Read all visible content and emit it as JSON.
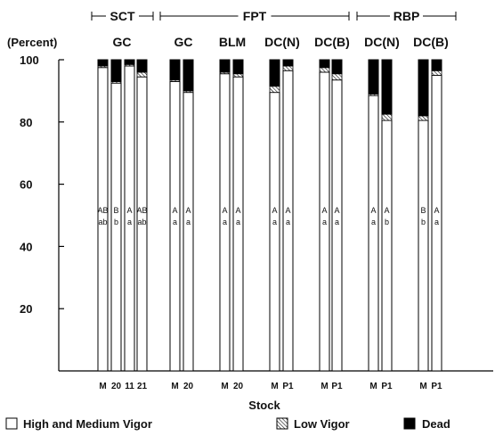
{
  "chart_data": {
    "type": "bar",
    "stacked": true,
    "ylabel": "(Percent)",
    "xlabel": "Stock",
    "ylim": [
      0,
      100
    ],
    "yticks": [
      20,
      40,
      60,
      80,
      100
    ],
    "legend_position": "bottom",
    "legend": [
      {
        "name": "High and Medium Vigor",
        "pattern": "white"
      },
      {
        "name": "Low Vigor",
        "pattern": "hatched"
      },
      {
        "name": "Dead",
        "pattern": "solid-black"
      }
    ],
    "site_groups": [
      {
        "label": "SCT"
      },
      {
        "label": "FPT"
      },
      {
        "label": "RBP"
      }
    ],
    "cultivar_groups": [
      {
        "label": "GC",
        "site": 0,
        "bars": [
          {
            "stock": "M",
            "high_medium": 97.5,
            "low": 0.5,
            "dead": 2.0,
            "letters": [
              "AB",
              "ab"
            ]
          },
          {
            "stock": "20",
            "high_medium": 92.5,
            "low": 0.5,
            "dead": 7.0,
            "letters": [
              "B",
              "b"
            ]
          },
          {
            "stock": "11",
            "high_medium": 98.0,
            "low": 0.5,
            "dead": 1.5,
            "letters": [
              "A",
              "a"
            ]
          },
          {
            "stock": "21",
            "high_medium": 94.5,
            "low": 1.5,
            "dead": 4.0,
            "letters": [
              "AB",
              "ab"
            ]
          }
        ]
      },
      {
        "label": "GC",
        "site": 1,
        "bars": [
          {
            "stock": "M",
            "high_medium": 93.0,
            "low": 0.5,
            "dead": 6.5,
            "letters": [
              "A",
              "a"
            ]
          },
          {
            "stock": "20",
            "high_medium": 89.5,
            "low": 0.5,
            "dead": 10.0,
            "letters": [
              "A",
              "a"
            ]
          }
        ]
      },
      {
        "label": "BLM",
        "site": 1,
        "bars": [
          {
            "stock": "M",
            "high_medium": 95.5,
            "low": 0.5,
            "dead": 4.0,
            "letters": [
              "A",
              "a"
            ]
          },
          {
            "stock": "20",
            "high_medium": 94.5,
            "low": 1.0,
            "dead": 4.5,
            "letters": [
              "A",
              "a"
            ]
          }
        ]
      },
      {
        "label": "DC(N)",
        "site": 1,
        "bars": [
          {
            "stock": "M",
            "high_medium": 89.5,
            "low": 2.0,
            "dead": 8.5,
            "letters": [
              "A",
              "a"
            ]
          },
          {
            "stock": "P1",
            "high_medium": 96.5,
            "low": 1.5,
            "dead": 2.0,
            "letters": [
              "A",
              "a"
            ]
          }
        ]
      },
      {
        "label": "DC(B)",
        "site": 1,
        "bars": [
          {
            "stock": "M",
            "high_medium": 96.0,
            "low": 1.5,
            "dead": 2.5,
            "letters": [
              "A",
              "a"
            ]
          },
          {
            "stock": "P1",
            "high_medium": 93.5,
            "low": 2.0,
            "dead": 4.5,
            "letters": [
              "A",
              "a"
            ]
          }
        ]
      },
      {
        "label": "DC(N)",
        "site": 2,
        "bars": [
          {
            "stock": "M",
            "high_medium": 88.5,
            "low": 0.5,
            "dead": 11.0,
            "letters": [
              "A",
              "a"
            ]
          },
          {
            "stock": "P1",
            "high_medium": 80.5,
            "low": 2.0,
            "dead": 17.5,
            "letters": [
              "A",
              "b"
            ]
          }
        ]
      },
      {
        "label": "DC(B)",
        "site": 2,
        "bars": [
          {
            "stock": "M",
            "high_medium": 80.5,
            "low": 1.5,
            "dead": 18.0,
            "letters": [
              "B",
              "b"
            ]
          },
          {
            "stock": "P1",
            "high_medium": 95.0,
            "low": 1.5,
            "dead": 3.5,
            "letters": [
              "A",
              "a"
            ]
          }
        ]
      }
    ]
  }
}
